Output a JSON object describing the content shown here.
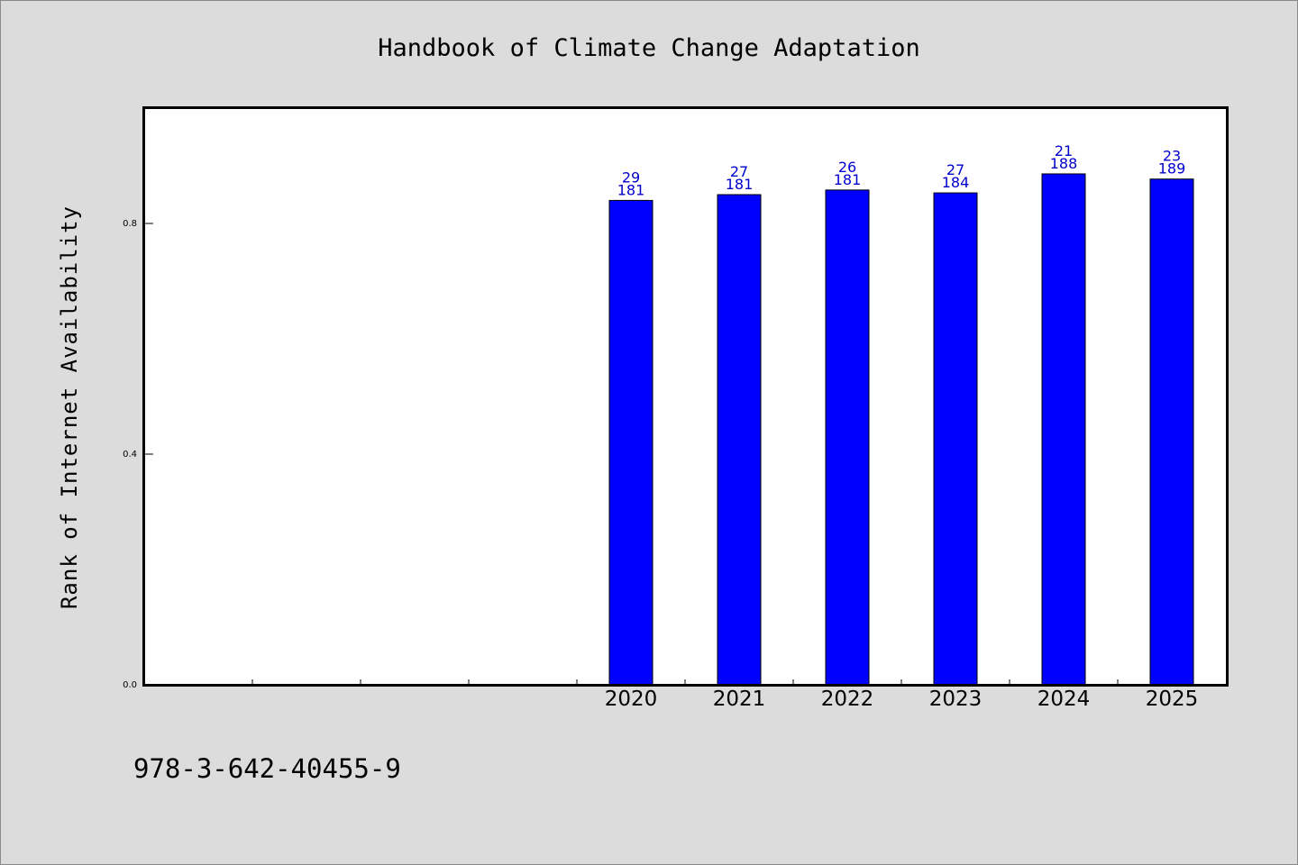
{
  "chart_data": {
    "type": "bar",
    "title": "Handbook of Climate Change Adaptation",
    "ylabel": "Rank of Internet Availability",
    "xlabel": "",
    "categories": [
      "",
      "",
      "",
      "",
      "2020",
      "2021",
      "2022",
      "2023",
      "2024",
      "2025"
    ],
    "values": [
      null,
      null,
      null,
      null,
      0.84,
      0.85,
      0.858,
      0.853,
      0.886,
      0.877
    ],
    "bar_labels": [
      null,
      null,
      null,
      null,
      [
        "29",
        "181"
      ],
      [
        "27",
        "181"
      ],
      [
        "26",
        "181"
      ],
      [
        "27",
        "184"
      ],
      [
        "21",
        "188"
      ],
      [
        "23",
        "189"
      ]
    ],
    "ylim": [
      0,
      1.0
    ],
    "yticks": [
      0.0,
      0.4,
      0.8
    ],
    "ytick_labels": [
      "0.0",
      "0.4",
      "0.8"
    ],
    "bar_color": "#0000ff",
    "label_color": "#0000cc",
    "grid": false,
    "legend": "none"
  },
  "footer": {
    "isbn": "978-3-642-40455-9"
  },
  "colors": {
    "background": "#dcdcdc",
    "plot_background": "#ffffff",
    "bar": "#0000ff"
  }
}
